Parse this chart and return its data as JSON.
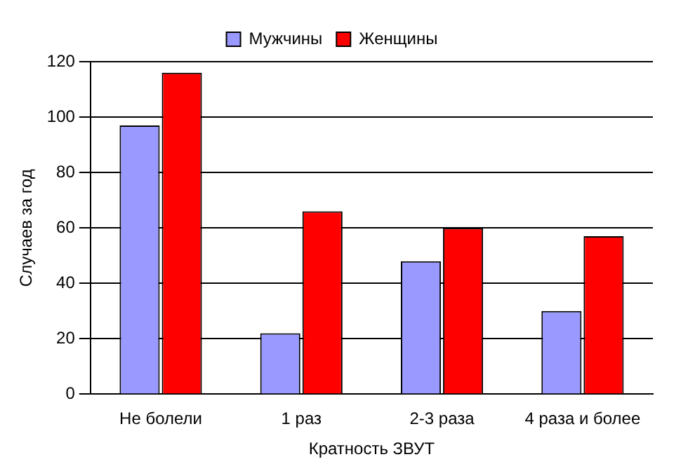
{
  "chart_data": {
    "type": "bar",
    "xlabel": "Кратность ЗВУТ",
    "ylabel": "Случаев за год",
    "categories": [
      "Не болели",
      "1 раз",
      "2-3 раза",
      "4 раза и более"
    ],
    "series": [
      {
        "name": "Мужчины",
        "color": "#9999ff",
        "values": [
          97,
          22,
          48,
          30
        ]
      },
      {
        "name": "Женщины",
        "color": "#ff0000",
        "values": [
          116,
          66,
          60,
          57
        ]
      }
    ],
    "ylim": [
      0,
      120
    ],
    "yticks": [
      0,
      20,
      40,
      60,
      80,
      100,
      120
    ],
    "grid": "y",
    "legend": "top"
  }
}
